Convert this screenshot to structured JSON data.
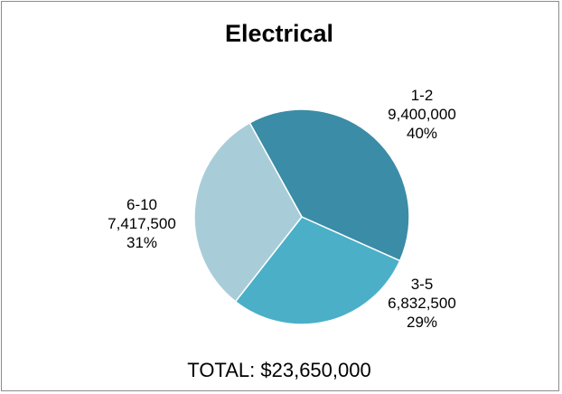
{
  "chart_data": {
    "type": "pie",
    "title": "Electrical",
    "slices": [
      {
        "category": "1-2",
        "value_label": "9,400,000",
        "percent_label": "40%",
        "value": 9400000,
        "color": "#3b8ca6"
      },
      {
        "category": "3-5",
        "value_label": "6,832,500",
        "percent_label": "29%",
        "value": 6832500,
        "color": "#4bafc8"
      },
      {
        "category": "6-10",
        "value_label": "7,417,500",
        "percent_label": "31%",
        "value": 7417500,
        "color": "#a8cdd9"
      }
    ],
    "start_angle_deg": -29,
    "total_label": "TOTAL: $23,650,000"
  }
}
